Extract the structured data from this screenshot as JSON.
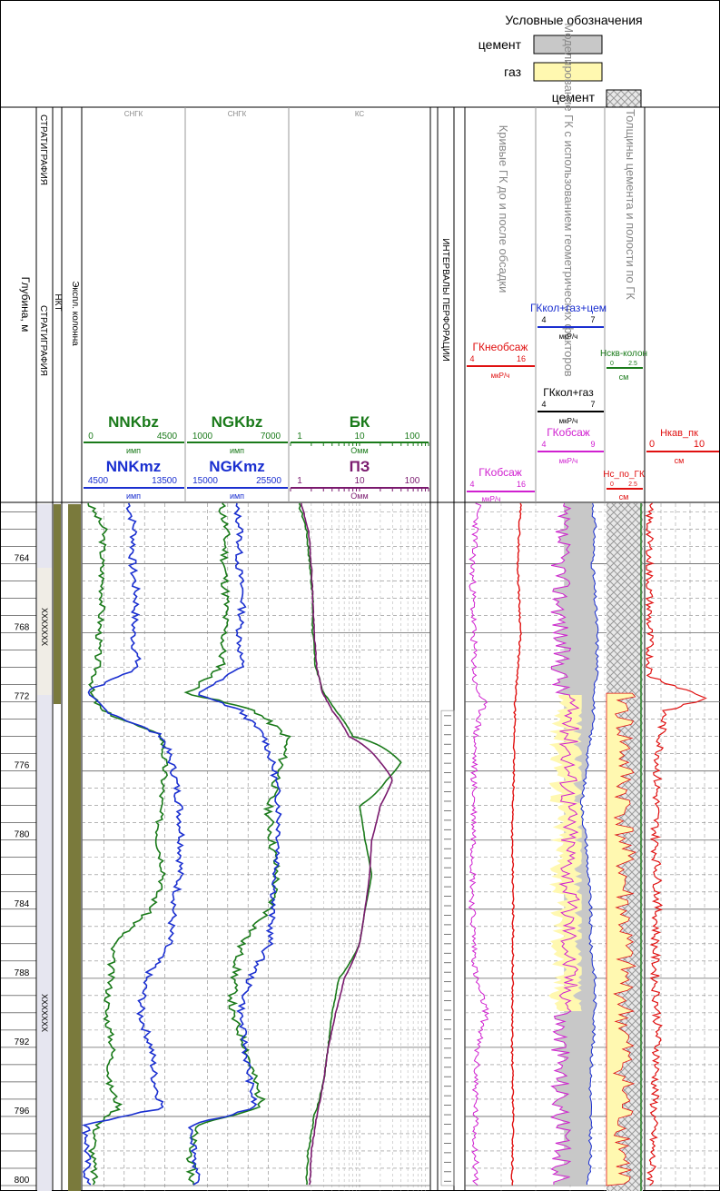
{
  "legend": {
    "title": "Условные обозначения",
    "items": [
      {
        "label": "цемент",
        "color": "#c8c8c8"
      },
      {
        "label": "газ",
        "color": "#fff8b0"
      },
      {
        "label": "цемент",
        "color": "#e6e6e6",
        "pattern": "crosshatch"
      }
    ]
  },
  "track_titles": {
    "depth": "Глубина, м",
    "strat1": "СТРАТИГРАФИЯ",
    "strat2": "СТРАТИГРАФИЯ",
    "nkt": "НКТ",
    "column": "Экспл. колонна",
    "sngk1": "СНГК",
    "sngk2": "СНГК",
    "ks": "КС",
    "perf": "ИНТЕРВАЛЫ ПЕРФОРАЦИИ",
    "gk_curves": "Кривые ГК до и после обсадки",
    "modeling": "Моделирование ГК с использованием геометрических факторов",
    "thickness": "Толщины цемента и полости по ГК"
  },
  "strat_labels": [
    "XXXXXXX",
    "XXXXXXX"
  ],
  "curve_headers": {
    "nnkbz": {
      "name": "NNKbz",
      "min": "0",
      "max": "4500",
      "unit": "имп",
      "color": "#1a7a1a"
    },
    "nnkmz": {
      "name": "NNKmz",
      "min": "4500",
      "max": "13500",
      "unit": "имп",
      "color": "#1a2fd0"
    },
    "ngkbz": {
      "name": "NGKbz",
      "min": "1000",
      "max": "7000",
      "unit": "имп",
      "color": "#1a7a1a"
    },
    "ngkmz": {
      "name": "NGKmz",
      "min": "15000",
      "max": "25500",
      "unit": "имп",
      "color": "#1a2fd0"
    },
    "bk": {
      "name": "БК",
      "min": "1",
      "mid": "10",
      "max": "100",
      "unit": "Омм",
      "color": "#1a7a1a"
    },
    "pz": {
      "name": "ПЗ",
      "min": "1",
      "mid": "10",
      "max": "100",
      "unit": "Омм",
      "color": "#7a1a6e"
    },
    "gkneobs": {
      "name": "ГКнеобсаж",
      "min": "4",
      "max": "16",
      "unit": "мкР/ч",
      "color": "#e01010"
    },
    "gkobs": {
      "name": "ГКобсаж",
      "min": "4",
      "max": "16",
      "unit": "мкР/ч",
      "color": "#d020d0"
    },
    "gkkolgazcem": {
      "name": "ГКкол+газ+цем",
      "min": "4",
      "max": "7",
      "unit": "мкР/ч",
      "color": "#1a2fd0"
    },
    "gkkolgaz": {
      "name": "ГКкол+газ",
      "min": "4",
      "max": "7",
      "unit": "мкР/ч",
      "color": "#000000"
    },
    "gkobs2": {
      "name": "ГКобсаж",
      "min": "4",
      "max": "9",
      "unit": "мкР/ч",
      "color": "#d020d0"
    },
    "hskv": {
      "name": "Нскв-колон",
      "min": "0",
      "max": "2.5",
      "unit": "см",
      "color": "#1a7a1a"
    },
    "hcpo": {
      "name": "Нс_по_ГК",
      "min": "0",
      "max": "2.5",
      "unit": "см",
      "color": "#e01010"
    },
    "hkav": {
      "name": "Нкав_пк",
      "min": "0",
      "max": "10",
      "unit": "см",
      "color": "#e01010"
    }
  },
  "chart_data": {
    "type": "line",
    "y_label": "Глубина, м",
    "depth_range": [
      760.5,
      800
    ],
    "depth_ticks": [
      764,
      768,
      772,
      776,
      780,
      784,
      788,
      792,
      796,
      800
    ],
    "tracks": [
      {
        "name": "NNKbz",
        "depth": [
          760.5,
          762,
          764,
          766,
          768,
          770,
          771.5,
          772.5,
          774,
          776,
          778,
          780,
          782,
          784,
          786,
          788,
          790,
          792,
          794,
          795.5,
          796.5,
          798,
          800
        ],
        "values": [
          250,
          900,
          800,
          850,
          700,
          600,
          300,
          800,
          3500,
          3600,
          3400,
          3300,
          3600,
          3000,
          1300,
          1200,
          1000,
          1300,
          1100,
          1600,
          600,
          400,
          500
        ]
      },
      {
        "name": "NNKmz",
        "depth": [
          760.5,
          762,
          764,
          766,
          768,
          770,
          771.5,
          772.5,
          774,
          776,
          778,
          780,
          782,
          784,
          786,
          788,
          790,
          792,
          794,
          795.5,
          796.5,
          798,
          800
        ],
        "values": [
          8500,
          9000,
          8800,
          9200,
          8900,
          9300,
          4600,
          6500,
          11500,
          12500,
          13000,
          13200,
          13000,
          12500,
          12000,
          10000,
          9500,
          10500,
          10800,
          11500,
          4800,
          4800,
          4800
        ]
      },
      {
        "name": "NGKbz",
        "depth": [
          760.5,
          762,
          764,
          766,
          768,
          770,
          771.5,
          772.5,
          774,
          776,
          778,
          780,
          782,
          784,
          786,
          788,
          790,
          792,
          794,
          795.5,
          796.5,
          798,
          800
        ],
        "values": [
          3000,
          3300,
          3200,
          3300,
          3200,
          3000,
          1100,
          5000,
          6900,
          6500,
          5800,
          6000,
          6300,
          5900,
          4200,
          3800,
          3600,
          4500,
          5000,
          5500,
          1500,
          1200,
          1300
        ]
      },
      {
        "name": "NGKmz",
        "depth": [
          760.5,
          762,
          764,
          766,
          768,
          770,
          771.5,
          772.5,
          774,
          776,
          778,
          780,
          782,
          784,
          786,
          788,
          790,
          792,
          794,
          795.5,
          796.5,
          798,
          800
        ],
        "values": [
          20000,
          20500,
          20300,
          20800,
          20400,
          20600,
          16000,
          20500,
          23000,
          24000,
          24500,
          24500,
          24200,
          23800,
          23500,
          21500,
          20500,
          21000,
          21500,
          22000,
          15500,
          15800,
          16000
        ]
      },
      {
        "name": "БК",
        "depth": [
          760.5,
          762,
          764,
          766,
          768,
          770,
          771.5,
          772.5,
          774,
          775.5,
          776.5,
          778,
          780,
          782,
          784,
          786,
          788,
          790,
          792,
          794,
          796,
          798,
          800
        ],
        "values": [
          1.3,
          1.7,
          1.9,
          2.1,
          2.1,
          2.3,
          3.0,
          4.5,
          8.0,
          40,
          25,
          10,
          12,
          15,
          12,
          10,
          5.0,
          4.0,
          3.5,
          3.0,
          2.2,
          1.8,
          1.7
        ]
      },
      {
        "name": "ПЗ",
        "depth": [
          760.5,
          762,
          764,
          766,
          768,
          770,
          771.5,
          772.5,
          774,
          775.5,
          776.5,
          778,
          780,
          782,
          784,
          786,
          788,
          790,
          792,
          794,
          796,
          798,
          800
        ],
        "values": [
          1.4,
          1.8,
          2.0,
          2.1,
          2.2,
          2.4,
          2.9,
          4.0,
          7.0,
          20,
          30,
          20,
          15,
          14,
          12,
          10,
          6.0,
          4.5,
          3.5,
          3.0,
          2.4,
          2.0,
          1.9
        ]
      },
      {
        "name": "ГКобсаж",
        "depth": [
          760.5,
          764,
          768,
          771,
          772,
          774,
          776,
          780,
          784,
          788,
          790,
          792,
          796,
          800
        ],
        "values": [
          6.0,
          5.0,
          5.2,
          5.4,
          7.0,
          5.5,
          5.3,
          5.3,
          5.0,
          5.6,
          7.5,
          5.8,
          5.5,
          5.6
        ]
      },
      {
        "name": "ГКнеобсаж",
        "depth": [
          760.5,
          764,
          768,
          772,
          776,
          780,
          784,
          788,
          792,
          796,
          800
        ],
        "values": [
          13.5,
          13.0,
          13.5,
          12.5,
          12.3,
          12.0,
          12.2,
          12.1,
          12.0,
          12.2,
          12.0
        ]
      },
      {
        "name": "ГКкол+газ+цем",
        "depth": [
          760.5,
          762,
          764,
          766,
          768,
          770,
          771.5,
          773,
          776,
          778,
          780,
          782,
          784,
          786,
          788,
          790,
          792,
          794,
          796,
          798,
          800
        ],
        "values": [
          6.5,
          6.6,
          6.5,
          6.6,
          6.7,
          6.7,
          6.6,
          6.5,
          6.2,
          6.0,
          6.2,
          6.3,
          6.4,
          6.4,
          6.6,
          6.6,
          6.5,
          6.4,
          6.4,
          6.4,
          6.3
        ]
      },
      {
        "name": "Нкав_пк",
        "depth": [
          760.5,
          770.5,
          771.8,
          772.5,
          774,
          776,
          780,
          782,
          784,
          786,
          788,
          790,
          792,
          794,
          796,
          798,
          800
        ],
        "values": [
          0.3,
          0.4,
          8.5,
          2.5,
          2.0,
          1.5,
          1.2,
          1.5,
          1.5,
          1.2,
          1.2,
          1.5,
          1.5,
          1.2,
          1.0,
          0.8,
          0.6
        ]
      }
    ]
  }
}
